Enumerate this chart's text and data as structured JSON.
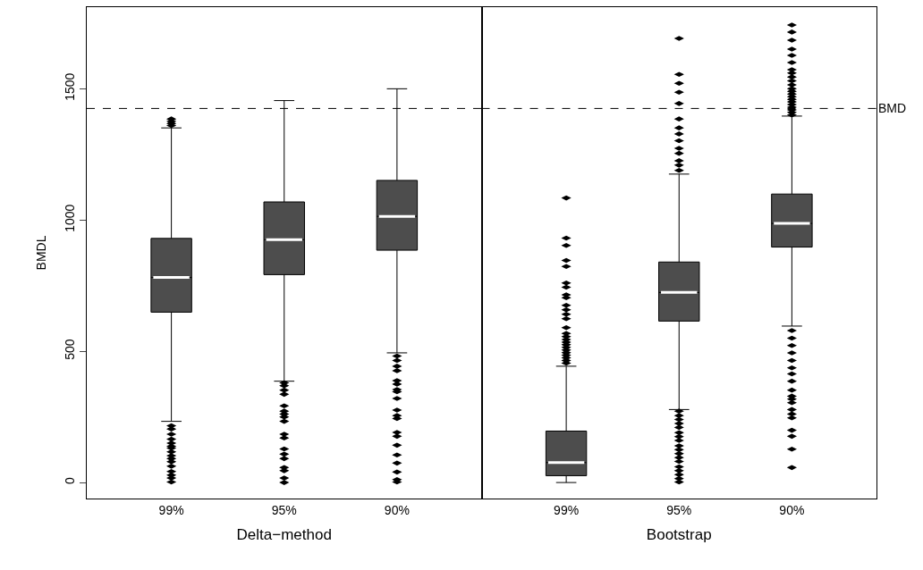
{
  "chart_data": [
    {
      "type": "box",
      "xlabel": "Delta−method",
      "ylabel": "BMDL",
      "categories": [
        "99%",
        "95%",
        "90%"
      ],
      "color": "#4d4d4d",
      "ylim": [
        -61,
        1811
      ],
      "yticks": [
        0,
        500,
        1000,
        1500
      ],
      "grid": false,
      "boxes": [
        {
          "low": 233,
          "q1": 649,
          "median": 781,
          "q3": 930,
          "high": 1351,
          "outliers": [
            1385,
            1376,
            1368,
            1360,
            216,
            204,
            184,
            165,
            150,
            138,
            131,
            117,
            102,
            91,
            79,
            62,
            42,
            28,
            17,
            2
          ]
        },
        {
          "low": 386,
          "q1": 792,
          "median": 925,
          "q3": 1069,
          "high": 1455,
          "outliers": [
            380,
            369,
            352,
            336,
            292,
            272,
            261,
            250,
            233,
            184,
            170,
            128,
            108,
            91,
            57,
            45,
            17,
            0
          ]
        },
        {
          "low": 494,
          "q1": 885,
          "median": 1014,
          "q3": 1151,
          "high": 1500,
          "outliers": [
            482,
            465,
            443,
            426,
            388,
            375,
            354,
            346,
            320,
            276,
            255,
            244,
            191,
            176,
            142,
            105,
            74,
            40,
            11,
            2
          ]
        }
      ],
      "ref_lines": [
        {
          "axis": "y",
          "value": 1425,
          "line_style": "dashed"
        }
      ]
    },
    {
      "type": "box",
      "xlabel": "Bootstrap",
      "categories": [
        "99%",
        "95%",
        "90%"
      ],
      "color": "#4d4d4d",
      "ylim": [
        -61,
        1811
      ],
      "yticks": [
        0,
        500,
        1000,
        1500
      ],
      "grid": false,
      "tick_labels": "x",
      "boxes": [
        {
          "low": 0,
          "q1": 26,
          "median": 76,
          "q3": 196,
          "high": 443,
          "outliers": [
            455,
            465,
            475,
            485,
            495,
            505,
            515,
            525,
            535,
            545,
            556,
            568,
            590,
            624,
            641,
            658,
            675,
            704,
            715,
            744,
            760,
            823,
            846,
            903,
            931,
            1084
          ]
        },
        {
          "low": 278,
          "q1": 615,
          "median": 724,
          "q3": 840,
          "high": 1175,
          "outliers": [
            1189,
            1209,
            1226,
            1254,
            1273,
            1302,
            1328,
            1351,
            1385,
            1444,
            1487,
            1521,
            1555,
            1692,
            272,
            255,
            240,
            225,
            210,
            190,
            175,
            160,
            140,
            125,
            110,
            95,
            80,
            60,
            45,
            30,
            15,
            2
          ]
        },
        {
          "low": 596,
          "q1": 897,
          "median": 987,
          "q3": 1099,
          "high": 1396,
          "outliers": [
            1400,
            1410,
            1420,
            1430,
            1440,
            1450,
            1460,
            1470,
            1480,
            1490,
            1500,
            1515,
            1530,
            1545,
            1560,
            1573,
            1600,
            1627,
            1651,
            1685,
            1716,
            1743,
            579,
            550,
            522,
            494,
            465,
            437,
            414,
            386,
            352,
            329,
            318,
            304,
            278,
            261,
            246,
            199,
            176,
            127,
            57
          ]
        }
      ],
      "ref_lines": [
        {
          "axis": "y",
          "value": 1425,
          "label": "BMD",
          "line_style": "dashed"
        }
      ]
    }
  ]
}
